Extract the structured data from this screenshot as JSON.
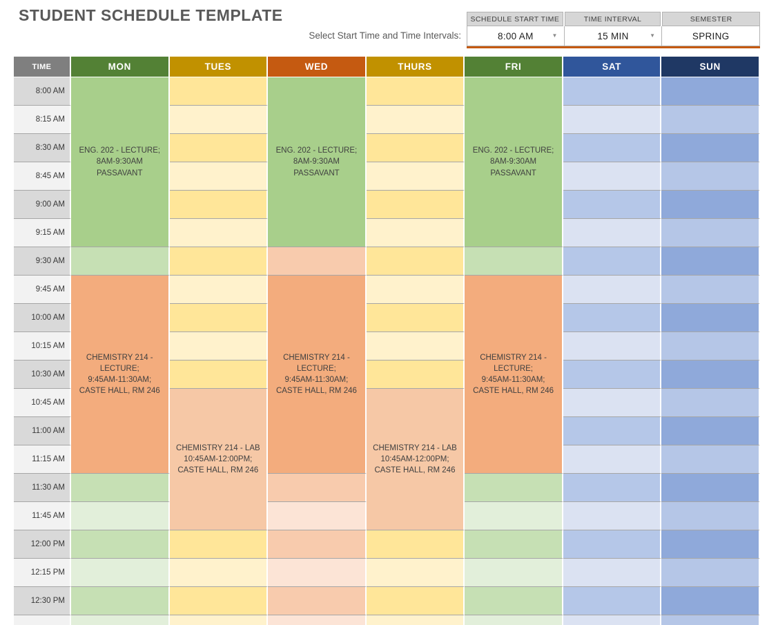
{
  "title": "STUDENT SCHEDULE TEMPLATE",
  "controls": {
    "label": "Select Start Time and Time Intervals:",
    "accent_color": "#c55a11",
    "fields": [
      {
        "header": "SCHEDULE START TIME",
        "value": "8:00 AM",
        "dropdown": true
      },
      {
        "header": "TIME INTERVAL",
        "value": "15 MIN",
        "dropdown": true
      },
      {
        "header": "SEMESTER",
        "value": "SPRING",
        "dropdown": false
      }
    ],
    "dropdown_icon": "▼"
  },
  "schedule": {
    "columns": [
      {
        "key": "time",
        "label": "TIME",
        "header_bg": "#7f7f7f",
        "dark": "#d9d9d9",
        "light": "#f2f2f2"
      },
      {
        "key": "mon",
        "label": "MON",
        "header_bg": "#538135",
        "dark": "#c6e0b4",
        "light": "#e2efda"
      },
      {
        "key": "tues",
        "label": "TUES",
        "header_bg": "#c19100",
        "dark": "#ffe699",
        "light": "#fff2cc"
      },
      {
        "key": "wed",
        "label": "WED",
        "header_bg": "#c55a11",
        "dark": "#f8cbad",
        "light": "#fce4d6"
      },
      {
        "key": "thurs",
        "label": "THURS",
        "header_bg": "#c19100",
        "dark": "#ffe699",
        "light": "#fff2cc"
      },
      {
        "key": "fri",
        "label": "FRI",
        "header_bg": "#538135",
        "dark": "#c6e0b4",
        "light": "#e2efda"
      },
      {
        "key": "sat",
        "label": "SAT",
        "header_bg": "#30569b",
        "dark": "#b5c7e8",
        "light": "#dbe2f2"
      },
      {
        "key": "sun",
        "label": "SUN",
        "header_bg": "#1f3864",
        "dark": "#8fa9da",
        "light": "#b5c6e7"
      }
    ],
    "times": [
      "8:00 AM",
      "8:15 AM",
      "8:30 AM",
      "8:45 AM",
      "9:00 AM",
      "9:15 AM",
      "9:30 AM",
      "9:45 AM",
      "10:00 AM",
      "10:15 AM",
      "10:30 AM",
      "10:45 AM",
      "11:00 AM",
      "11:15 AM",
      "11:30 AM",
      "11:45 AM",
      "12:00 PM",
      "12:15 PM",
      "12:30 PM"
    ],
    "has_partial_bottom_row": true,
    "events": [
      {
        "day": "mon",
        "start": 0,
        "span": 6,
        "bg": "#a8cf8b",
        "label": "ENG. 202 - LECTURE;\n8AM-9:30AM\nPASSAVANT"
      },
      {
        "day": "wed",
        "start": 0,
        "span": 6,
        "bg": "#a8cf8b",
        "label": "ENG. 202 - LECTURE;\n8AM-9:30AM\nPASSAVANT"
      },
      {
        "day": "fri",
        "start": 0,
        "span": 6,
        "bg": "#a8cf8b",
        "label": "ENG. 202 - LECTURE;\n8AM-9:30AM\nPASSAVANT"
      },
      {
        "day": "mon",
        "start": 7,
        "span": 7,
        "bg": "#f3ac7d",
        "label": "CHEMISTRY 214 -\nLECTURE;\n9:45AM-11:30AM;\nCASTE HALL, RM 246"
      },
      {
        "day": "wed",
        "start": 7,
        "span": 7,
        "bg": "#f3ac7d",
        "label": "CHEMISTRY 214 -\nLECTURE;\n9:45AM-11:30AM;\nCASTE HALL, RM 246"
      },
      {
        "day": "fri",
        "start": 7,
        "span": 7,
        "bg": "#f3ac7d",
        "label": "CHEMISTRY 214 -\nLECTURE;\n9:45AM-11:30AM;\nCASTE HALL, RM 246"
      },
      {
        "day": "tues",
        "start": 11,
        "span": 5,
        "bg": "#f6c8a6",
        "label": "CHEMISTRY 214 - LAB\n10:45AM-12:00PM;\nCASTE HALL, RM 246"
      },
      {
        "day": "thurs",
        "start": 11,
        "span": 5,
        "bg": "#f6c8a6",
        "label": "CHEMISTRY 214 - LAB\n10:45AM-12:00PM;\nCASTE HALL, RM 246"
      }
    ]
  }
}
